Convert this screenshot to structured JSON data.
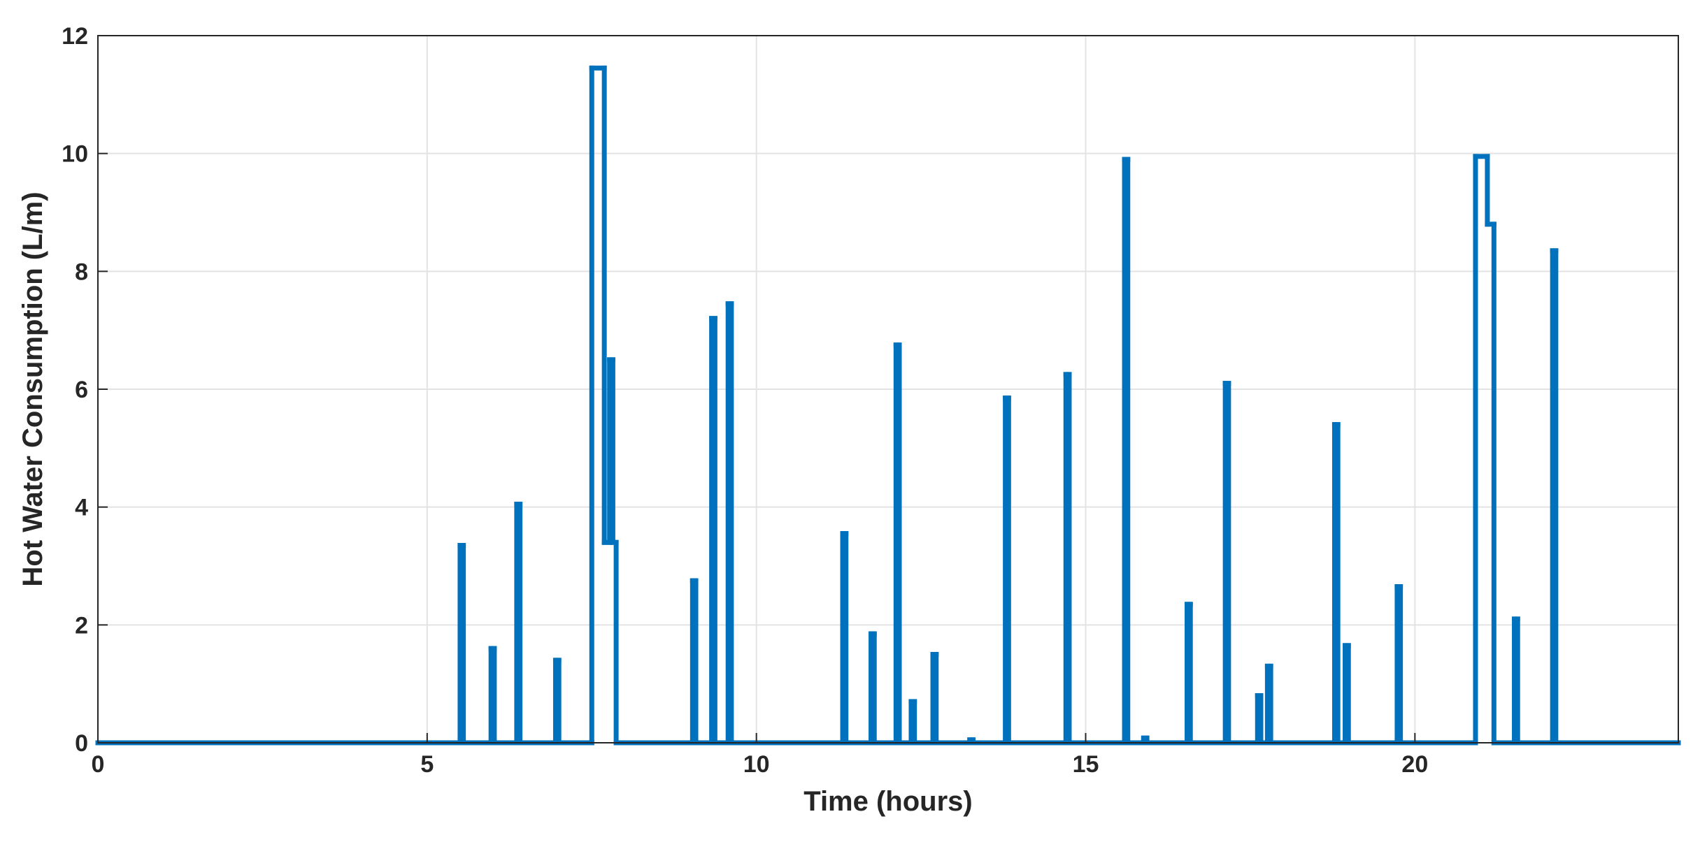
{
  "chart_data": {
    "type": "step",
    "x_label": "Time (hours)",
    "y_label": "Hot Water Consumption (L/m)",
    "xlim": [
      0,
      24
    ],
    "ylim": [
      0,
      12
    ],
    "xticks": [
      0,
      5,
      10,
      15,
      20
    ],
    "yticks": [
      0,
      2,
      4,
      6,
      8,
      10,
      12
    ],
    "grid": true,
    "color": "#0072bd",
    "x": [
      0,
      5.5,
      5.55,
      5.97,
      6.02,
      6.36,
      6.41,
      6.95,
      7.0,
      7.5,
      7.69,
      7.77,
      7.82,
      7.87,
      9.03,
      9.08,
      9.32,
      9.37,
      9.57,
      9.62,
      11.31,
      11.36,
      11.74,
      11.79,
      12.12,
      12.17,
      12.35,
      12.4,
      12.68,
      12.73,
      13.24,
      13.29,
      13.78,
      13.83,
      14.7,
      14.75,
      15.59,
      15.64,
      15.88,
      15.93,
      16.54,
      16.59,
      17.12,
      17.17,
      17.61,
      17.66,
      17.76,
      17.81,
      18.78,
      18.83,
      18.94,
      18.99,
      19.73,
      19.78,
      20.92,
      21.1,
      21.2,
      21.51,
      21.56,
      22.09,
      22.14
    ],
    "values": [
      0,
      3.35,
      0,
      1.6,
      0,
      4.05,
      0,
      1.4,
      0,
      11.45,
      3.4,
      6.5,
      3.4,
      0,
      2.75,
      0,
      7.2,
      0,
      7.45,
      0,
      3.55,
      0,
      1.85,
      0,
      6.75,
      0,
      0.7,
      0,
      1.5,
      0,
      0.05,
      0,
      5.85,
      0,
      6.25,
      0,
      9.9,
      0,
      0.08,
      0,
      2.35,
      0,
      6.1,
      0,
      0.8,
      0,
      1.3,
      0,
      5.4,
      0,
      1.65,
      0,
      2.65,
      0,
      9.95,
      8.8,
      0,
      2.1,
      0,
      8.35,
      0
    ]
  }
}
